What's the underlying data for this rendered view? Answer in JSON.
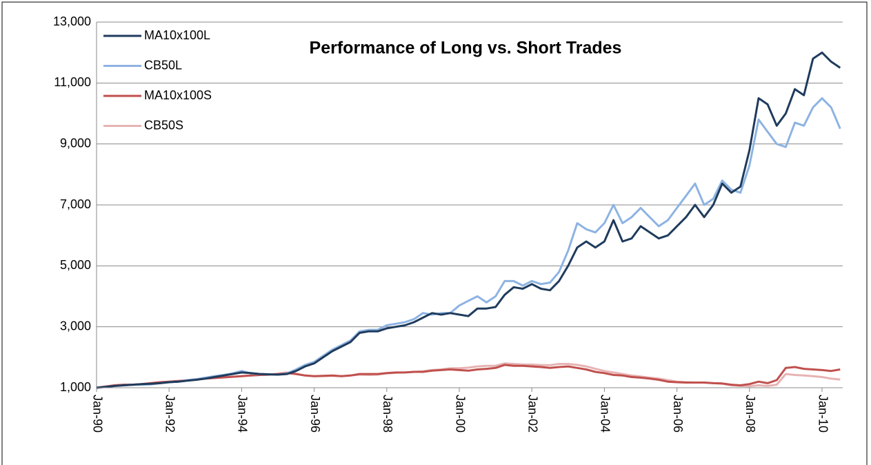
{
  "chart_data": {
    "type": "line",
    "title": "Performance of Long vs. Short Trades",
    "categories": [
      "Jan-90",
      null,
      null,
      null,
      null,
      null,
      null,
      null,
      "Jan-92",
      null,
      null,
      null,
      null,
      null,
      null,
      null,
      "Jan-94",
      null,
      null,
      null,
      null,
      null,
      null,
      null,
      "Jan-96",
      null,
      null,
      null,
      null,
      null,
      null,
      null,
      "Jan-98",
      null,
      null,
      null,
      null,
      null,
      null,
      null,
      "Jan-00",
      null,
      null,
      null,
      null,
      null,
      null,
      null,
      "Jan-02",
      null,
      null,
      null,
      null,
      null,
      null,
      null,
      "Jan-04",
      null,
      null,
      null,
      null,
      null,
      null,
      null,
      "Jan-06",
      null,
      null,
      null,
      null,
      null,
      null,
      null,
      "Jan-08",
      null,
      null,
      null,
      null,
      null,
      null,
      null,
      "Jan-10",
      null,
      null
    ],
    "series": [
      {
        "name": "MA10x100L",
        "color": "#1f3b5c",
        "values": [
          1000,
          1030,
          1060,
          1080,
          1100,
          1120,
          1130,
          1150,
          1180,
          1200,
          1230,
          1260,
          1300,
          1350,
          1400,
          1450,
          1500,
          1480,
          1450,
          1440,
          1430,
          1450,
          1550,
          1700,
          1800,
          2000,
          2200,
          2350,
          2500,
          2800,
          2850,
          2850,
          2950,
          3000,
          3050,
          3150,
          3300,
          3450,
          3400,
          3450,
          3400,
          3350,
          3600,
          3600,
          3650,
          4050,
          4300,
          4250,
          4400,
          4250,
          4200,
          4500,
          5000,
          5600,
          5800,
          5600,
          5800,
          6500,
          5800,
          5900,
          6300,
          6100,
          5900,
          6000,
          6300,
          6600,
          7000,
          6600,
          7000,
          7700,
          7400,
          7600,
          8800,
          10500,
          10300,
          9600,
          10000,
          10800,
          10600,
          11800,
          12000,
          11700,
          11500
        ]
      },
      {
        "name": "CB50L",
        "color": "#8db3e2",
        "values": [
          1000,
          1030,
          1060,
          1080,
          1100,
          1100,
          1110,
          1150,
          1180,
          1200,
          1250,
          1280,
          1330,
          1380,
          1420,
          1470,
          1550,
          1470,
          1450,
          1440,
          1430,
          1470,
          1600,
          1750,
          1850,
          2050,
          2250,
          2400,
          2550,
          2850,
          2900,
          2900,
          3050,
          3100,
          3150,
          3250,
          3450,
          3400,
          3450,
          3450,
          3700,
          3850,
          4000,
          3800,
          4000,
          4500,
          4500,
          4350,
          4500,
          4400,
          4450,
          4800,
          5500,
          6400,
          6200,
          6100,
          6400,
          7000,
          6400,
          6600,
          6900,
          6600,
          6300,
          6500,
          6900,
          7300,
          7700,
          7000,
          7200,
          7800,
          7500,
          7400,
          8300,
          9800,
          9400,
          9000,
          8900,
          9700,
          9600,
          10200,
          10500,
          10200,
          9500
        ]
      },
      {
        "name": "MA10x100S",
        "color": "#c0504d",
        "values": [
          1000,
          1040,
          1080,
          1100,
          1100,
          1120,
          1150,
          1180,
          1200,
          1220,
          1240,
          1270,
          1300,
          1320,
          1340,
          1360,
          1380,
          1400,
          1420,
          1430,
          1450,
          1480,
          1450,
          1400,
          1380,
          1390,
          1400,
          1380,
          1400,
          1450,
          1450,
          1450,
          1480,
          1500,
          1500,
          1520,
          1520,
          1560,
          1580,
          1600,
          1580,
          1560,
          1600,
          1620,
          1650,
          1750,
          1720,
          1720,
          1700,
          1680,
          1650,
          1680,
          1700,
          1650,
          1600,
          1520,
          1480,
          1420,
          1400,
          1350,
          1330,
          1300,
          1260,
          1200,
          1180,
          1170,
          1170,
          1170,
          1150,
          1140,
          1100,
          1080,
          1120,
          1200,
          1150,
          1250,
          1650,
          1680,
          1620,
          1600,
          1580,
          1550,
          1600
        ]
      },
      {
        "name": "CB50S",
        "color": "#e6b3b3",
        "values": [
          1000,
          1040,
          1080,
          1100,
          1100,
          1120,
          1150,
          1180,
          1200,
          1220,
          1250,
          1280,
          1300,
          1320,
          1340,
          1360,
          1380,
          1400,
          1420,
          1430,
          1460,
          1500,
          1460,
          1400,
          1380,
          1380,
          1390,
          1380,
          1400,
          1430,
          1420,
          1430,
          1470,
          1490,
          1500,
          1520,
          1540,
          1580,
          1600,
          1640,
          1640,
          1660,
          1700,
          1720,
          1720,
          1800,
          1780,
          1760,
          1760,
          1740,
          1740,
          1780,
          1780,
          1750,
          1700,
          1620,
          1550,
          1500,
          1450,
          1400,
          1370,
          1330,
          1300,
          1250,
          1200,
          1180,
          1170,
          1170,
          1150,
          1130,
          1080,
          1060,
          1050,
          1080,
          1060,
          1100,
          1450,
          1420,
          1400,
          1380,
          1350,
          1300,
          1270
        ]
      }
    ],
    "ylim": [
      1000,
      13000
    ],
    "yticks": [
      {
        "value": 1000,
        "label": "1,000"
      },
      {
        "value": 3000,
        "label": "3,000"
      },
      {
        "value": 5000,
        "label": "5,000"
      },
      {
        "value": 7000,
        "label": "7,000"
      },
      {
        "value": 9000,
        "label": "9,000"
      },
      {
        "value": 11000,
        "label": "11,000"
      },
      {
        "value": 13000,
        "label": "13,000"
      }
    ],
    "grid": true,
    "legend": "upper left"
  }
}
